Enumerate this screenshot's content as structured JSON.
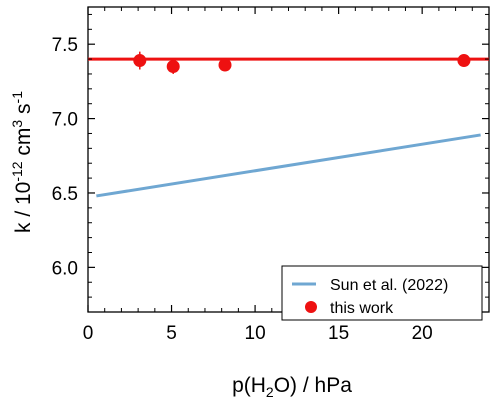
{
  "chart_data": {
    "type": "scatter",
    "xlabel": {
      "main": "p(H",
      "sub": "2",
      "rest": "O) / hPa"
    },
    "ylabel": {
      "k": "k / 10",
      "exp": "-12",
      "units": " cm",
      "cube": "3",
      "s": " s",
      "sexp": "-1"
    },
    "xlim": [
      0,
      24
    ],
    "ylim": [
      5.7,
      7.75
    ],
    "x_ticks": [
      0,
      5,
      10,
      15,
      20
    ],
    "x_tick_labels": [
      "0",
      "5",
      "10",
      "15",
      "20"
    ],
    "y_ticks": [
      6.0,
      6.5,
      7.0,
      7.5
    ],
    "y_tick_labels": [
      "6.0",
      "6.5",
      "7.0",
      "7.5"
    ],
    "grid": false,
    "legend_position": "bottom-right",
    "colors": {
      "sun": "#6fa7d2",
      "this_work": "#ee1111",
      "axis": "#000000"
    },
    "series": [
      {
        "name": "Sun et al. (2022)",
        "kind": "line",
        "x": [
          0.5,
          23.5
        ],
        "y": [
          6.48,
          6.89
        ]
      },
      {
        "name": "this work",
        "kind": "points",
        "x": [
          3.1,
          5.1,
          8.2,
          22.5
        ],
        "y": [
          7.39,
          7.35,
          7.36,
          7.39
        ],
        "err": [
          0.06,
          0.05,
          0.03,
          0.03
        ]
      },
      {
        "name": "",
        "kind": "fit-line",
        "x": [
          0,
          24
        ],
        "y": [
          7.4,
          7.4
        ]
      }
    ]
  }
}
